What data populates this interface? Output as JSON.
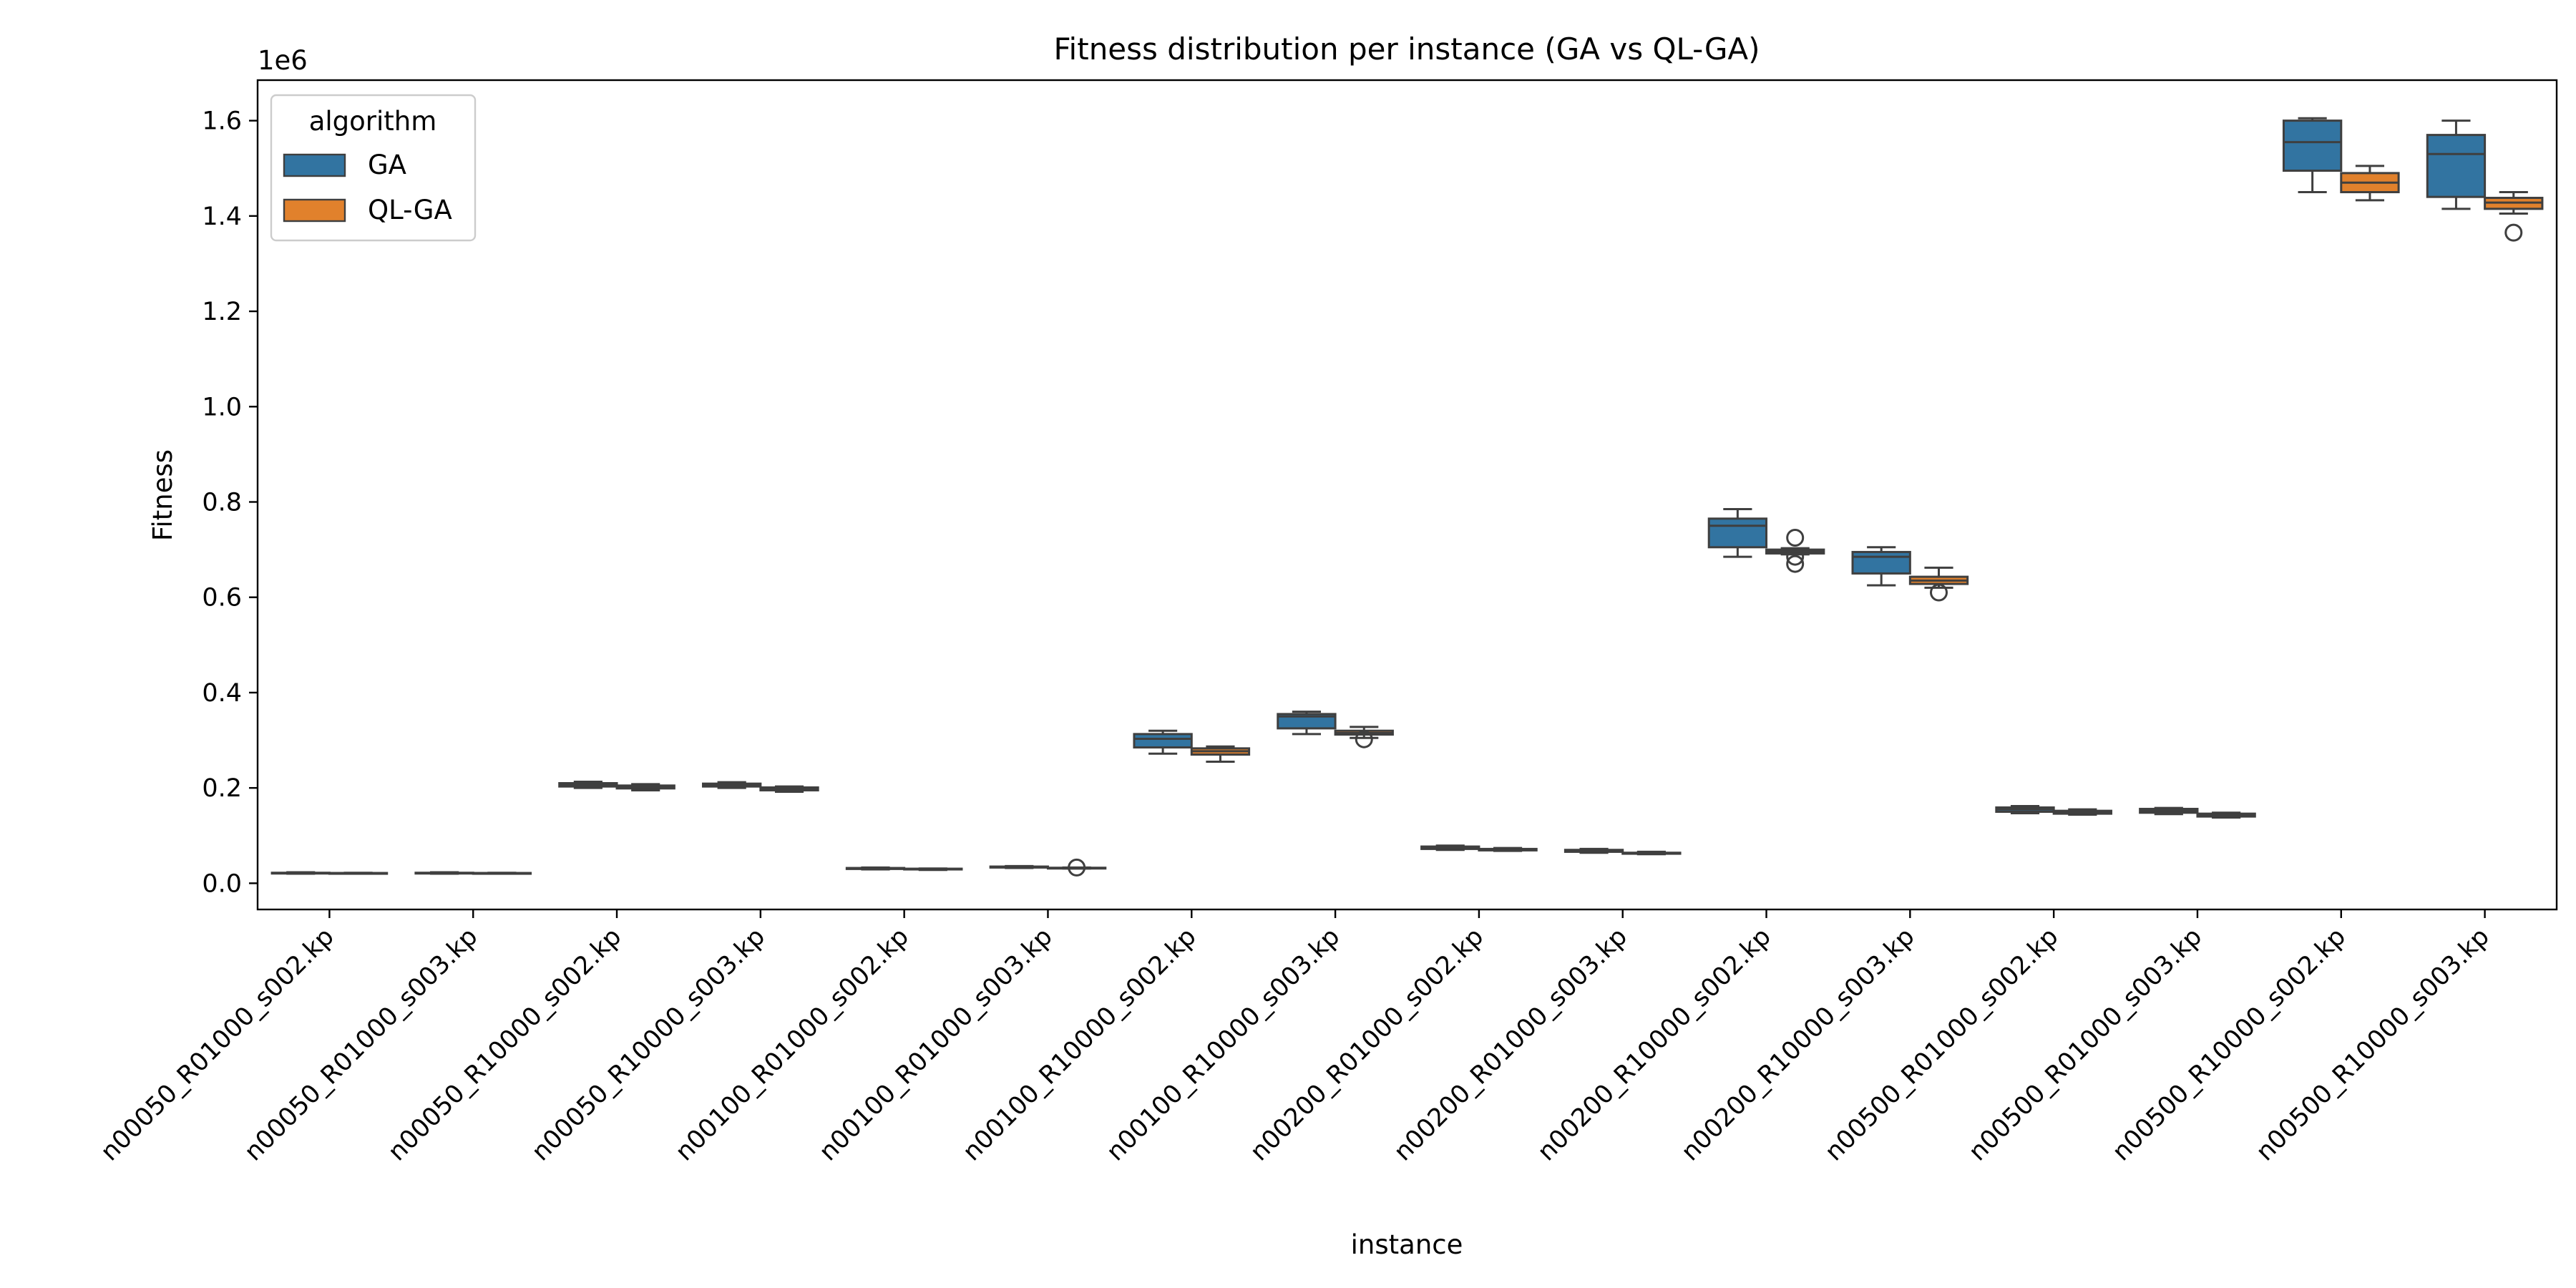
{
  "chart_data": {
    "type": "box",
    "title": "Fitness distribution per instance (GA vs QL-GA)",
    "xlabel": "instance",
    "ylabel": "Fitness",
    "y_offset_label": "1e6",
    "ylim": [
      -0.055,
      1.685
    ],
    "yticks": [
      0.0,
      0.2,
      0.4,
      0.6,
      0.8,
      1.0,
      1.2,
      1.4,
      1.6
    ],
    "ytick_labels": [
      "0.0",
      "0.2",
      "0.4",
      "0.6",
      "0.8",
      "1.0",
      "1.2",
      "1.4",
      "1.6"
    ],
    "grid": false,
    "legend_title": "algorithm",
    "legend_position": "top-left",
    "categories": [
      "n00050_R01000_s002.kp",
      "n00050_R01000_s003.kp",
      "n00050_R10000_s002.kp",
      "n00050_R10000_s003.kp",
      "n00100_R01000_s002.kp",
      "n00100_R01000_s003.kp",
      "n00100_R10000_s002.kp",
      "n00100_R10000_s003.kp",
      "n00200_R01000_s002.kp",
      "n00200_R01000_s003.kp",
      "n00200_R10000_s002.kp",
      "n00200_R10000_s003.kp",
      "n00500_R01000_s002.kp",
      "n00500_R01000_s003.kp",
      "n00500_R10000_s002.kp",
      "n00500_R10000_s003.kp"
    ],
    "series": [
      {
        "name": "GA",
        "color": "#3274a1",
        "boxes": [
          {
            "whislo": 0.02,
            "q1": 0.021,
            "med": 0.0215,
            "q3": 0.022,
            "whishi": 0.023,
            "fliers": []
          },
          {
            "whislo": 0.02,
            "q1": 0.021,
            "med": 0.0215,
            "q3": 0.022,
            "whishi": 0.023,
            "fliers": []
          },
          {
            "whislo": 0.2,
            "q1": 0.203,
            "med": 0.206,
            "q3": 0.21,
            "whishi": 0.213,
            "fliers": []
          },
          {
            "whislo": 0.2,
            "q1": 0.203,
            "med": 0.206,
            "q3": 0.209,
            "whishi": 0.212,
            "fliers": []
          },
          {
            "whislo": 0.029,
            "q1": 0.03,
            "med": 0.031,
            "q3": 0.032,
            "whishi": 0.033,
            "fliers": []
          },
          {
            "whislo": 0.032,
            "q1": 0.033,
            "med": 0.034,
            "q3": 0.035,
            "whishi": 0.036,
            "fliers": []
          },
          {
            "whislo": 0.272,
            "q1": 0.285,
            "med": 0.303,
            "q3": 0.313,
            "whishi": 0.32,
            "fliers": []
          },
          {
            "whislo": 0.313,
            "q1": 0.325,
            "med": 0.35,
            "q3": 0.355,
            "whishi": 0.36,
            "fliers": []
          },
          {
            "whislo": 0.07,
            "q1": 0.072,
            "med": 0.075,
            "q3": 0.077,
            "whishi": 0.079,
            "fliers": []
          },
          {
            "whislo": 0.064,
            "q1": 0.066,
            "med": 0.068,
            "q3": 0.07,
            "whishi": 0.072,
            "fliers": []
          },
          {
            "whislo": 0.685,
            "q1": 0.705,
            "med": 0.75,
            "q3": 0.765,
            "whishi": 0.785,
            "fliers": []
          },
          {
            "whislo": 0.625,
            "q1": 0.65,
            "med": 0.685,
            "q3": 0.695,
            "whishi": 0.705,
            "fliers": []
          },
          {
            "whislo": 0.147,
            "q1": 0.15,
            "med": 0.155,
            "q3": 0.159,
            "whishi": 0.162,
            "fliers": []
          },
          {
            "whislo": 0.145,
            "q1": 0.148,
            "med": 0.152,
            "q3": 0.156,
            "whishi": 0.158,
            "fliers": []
          },
          {
            "whislo": 1.45,
            "q1": 1.495,
            "med": 1.555,
            "q3": 1.6,
            "whishi": 1.605,
            "fliers": []
          },
          {
            "whislo": 1.415,
            "q1": 1.44,
            "med": 1.53,
            "q3": 1.57,
            "whishi": 1.6,
            "fliers": []
          }
        ]
      },
      {
        "name": "QL-GA",
        "color": "#e1812c",
        "boxes": [
          {
            "whislo": 0.02,
            "q1": 0.0205,
            "med": 0.021,
            "q3": 0.0215,
            "whishi": 0.022,
            "fliers": []
          },
          {
            "whislo": 0.02,
            "q1": 0.0205,
            "med": 0.021,
            "q3": 0.0215,
            "whishi": 0.022,
            "fliers": []
          },
          {
            "whislo": 0.195,
            "q1": 0.199,
            "med": 0.202,
            "q3": 0.205,
            "whishi": 0.208,
            "fliers": []
          },
          {
            "whislo": 0.192,
            "q1": 0.195,
            "med": 0.198,
            "q3": 0.201,
            "whishi": 0.203,
            "fliers": []
          },
          {
            "whislo": 0.028,
            "q1": 0.029,
            "med": 0.03,
            "q3": 0.0305,
            "whishi": 0.031,
            "fliers": []
          },
          {
            "whislo": 0.031,
            "q1": 0.0315,
            "med": 0.032,
            "q3": 0.0325,
            "whishi": 0.033,
            "fliers": [
              0.033
            ]
          },
          {
            "whislo": 0.255,
            "q1": 0.27,
            "med": 0.277,
            "q3": 0.283,
            "whishi": 0.287,
            "fliers": []
          },
          {
            "whislo": 0.305,
            "q1": 0.312,
            "med": 0.315,
            "q3": 0.32,
            "whishi": 0.328,
            "fliers": [
              0.302
            ]
          },
          {
            "whislo": 0.068,
            "q1": 0.069,
            "med": 0.071,
            "q3": 0.072,
            "whishi": 0.074,
            "fliers": []
          },
          {
            "whislo": 0.061,
            "q1": 0.062,
            "med": 0.063,
            "q3": 0.064,
            "whishi": 0.066,
            "fliers": []
          },
          {
            "whislo": 0.69,
            "q1": 0.692,
            "med": 0.696,
            "q3": 0.7,
            "whishi": 0.703,
            "fliers": [
              0.725,
              0.685,
              0.67
            ]
          },
          {
            "whislo": 0.62,
            "q1": 0.628,
            "med": 0.635,
            "q3": 0.643,
            "whishi": 0.662,
            "fliers": [
              0.61
            ]
          },
          {
            "whislo": 0.144,
            "q1": 0.146,
            "med": 0.149,
            "q3": 0.152,
            "whishi": 0.155,
            "fliers": []
          },
          {
            "whislo": 0.138,
            "q1": 0.14,
            "med": 0.143,
            "q3": 0.146,
            "whishi": 0.148,
            "fliers": []
          },
          {
            "whislo": 1.433,
            "q1": 1.45,
            "med": 1.47,
            "q3": 1.49,
            "whishi": 1.505,
            "fliers": []
          },
          {
            "whislo": 1.405,
            "q1": 1.415,
            "med": 1.428,
            "q3": 1.438,
            "whishi": 1.45,
            "fliers": [
              1.365
            ]
          }
        ]
      }
    ]
  }
}
